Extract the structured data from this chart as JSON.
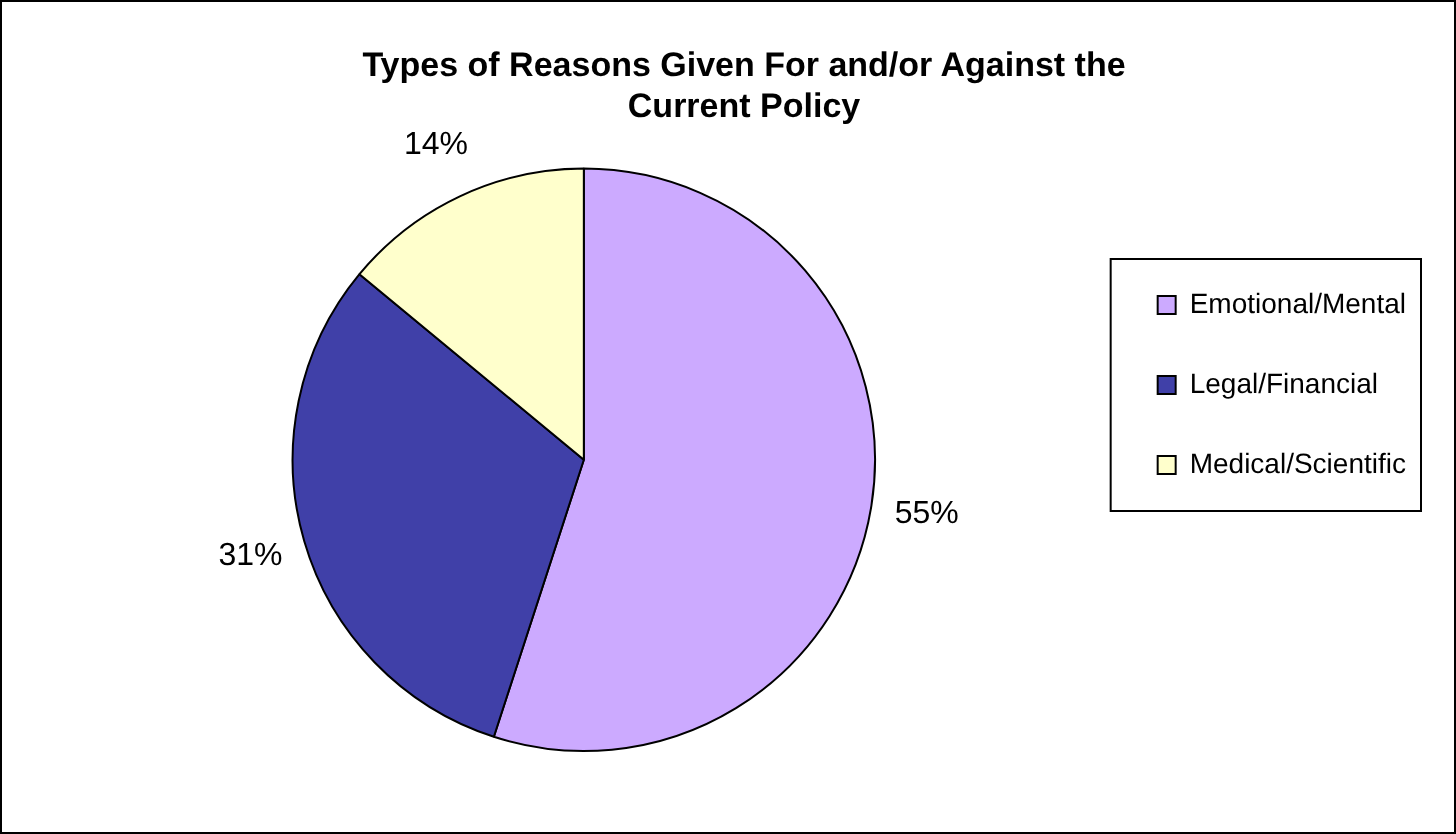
{
  "chart_data": {
    "type": "pie",
    "title": "Types of Reasons Given For and/or Against the Current Policy",
    "categories": [
      "Emotional/Mental",
      "Legal/Financial",
      "Medical/Scientific"
    ],
    "values": [
      55,
      31,
      14
    ],
    "colors": [
      "#ccaaff",
      "#4040a8",
      "#ffffcc"
    ],
    "value_labels": [
      "55%",
      "31%",
      "14%"
    ],
    "legend": "right"
  }
}
